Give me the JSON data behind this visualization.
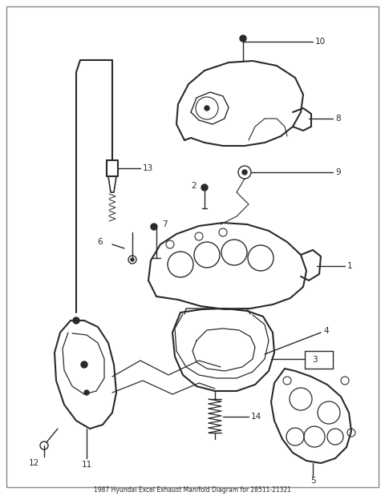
{
  "title": "1987 Hyundai Excel Exhaust Manifold Diagram for 28511-21321",
  "bg_color": "#ffffff",
  "line_color": "#2a2a2a",
  "fig_width": 4.8,
  "fig_height": 6.24,
  "dpi": 100
}
